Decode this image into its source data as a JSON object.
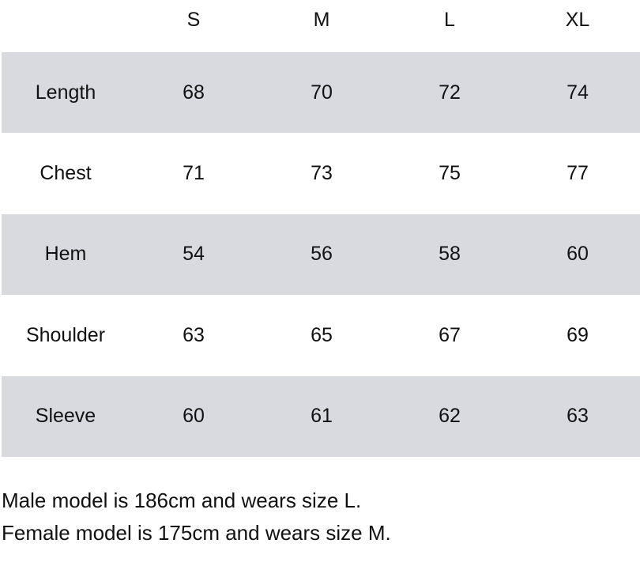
{
  "table": {
    "columns": [
      "",
      "S",
      "M",
      "L",
      "XL"
    ],
    "rows": [
      {
        "label": "Length",
        "values": [
          "68",
          "70",
          "72",
          "74"
        ]
      },
      {
        "label": "Chest",
        "values": [
          "71",
          "73",
          "75",
          "77"
        ]
      },
      {
        "label": "Hem",
        "values": [
          "54",
          "56",
          "58",
          "60"
        ]
      },
      {
        "label": "Shoulder",
        "values": [
          "63",
          "65",
          "67",
          "69"
        ]
      },
      {
        "label": "Sleeve",
        "values": [
          "60",
          "61",
          "62",
          "63"
        ]
      }
    ],
    "stripe_color": "#d9dadf"
  },
  "notes": [
    "Male model is 186cm and wears size L.",
    "Female model is 175cm and wears size M."
  ]
}
